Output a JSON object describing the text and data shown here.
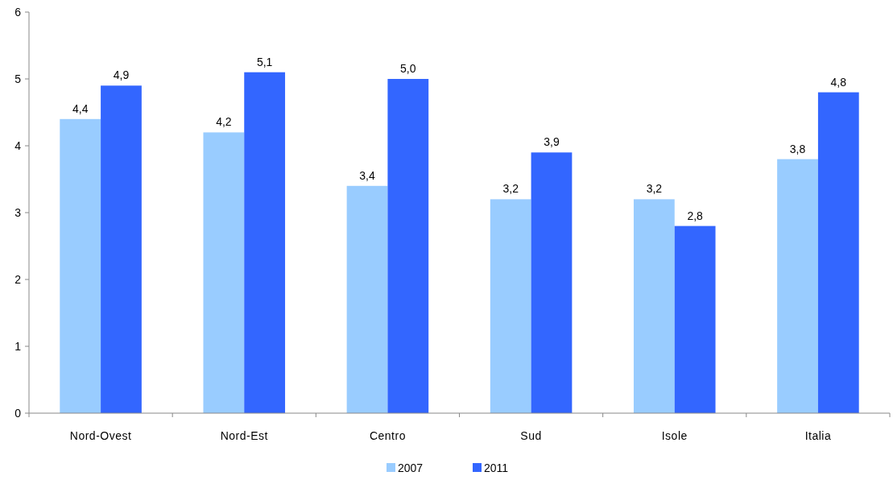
{
  "chart_data": {
    "type": "bar",
    "categories": [
      "Nord-Ovest",
      "Nord-Est",
      "Centro",
      "Sud",
      "Isole",
      "Italia"
    ],
    "series": [
      {
        "name": "2007",
        "color": "#99ccff",
        "values": [
          4.4,
          4.2,
          3.4,
          3.2,
          3.2,
          3.8
        ],
        "value_labels": [
          "4,4",
          "4,2",
          "3,4",
          "3,2",
          "3,2",
          "3,8"
        ]
      },
      {
        "name": "2011",
        "color": "#3366ff",
        "values": [
          4.9,
          5.1,
          5.0,
          3.9,
          2.8,
          4.8
        ],
        "value_labels": [
          "4,9",
          "5,1",
          "5,0",
          "3,9",
          "2,8",
          "4,8"
        ]
      }
    ],
    "ylim": [
      0,
      6
    ],
    "yticks": [
      0,
      1,
      2,
      3,
      4,
      5,
      6
    ],
    "legend": "bottom"
  }
}
